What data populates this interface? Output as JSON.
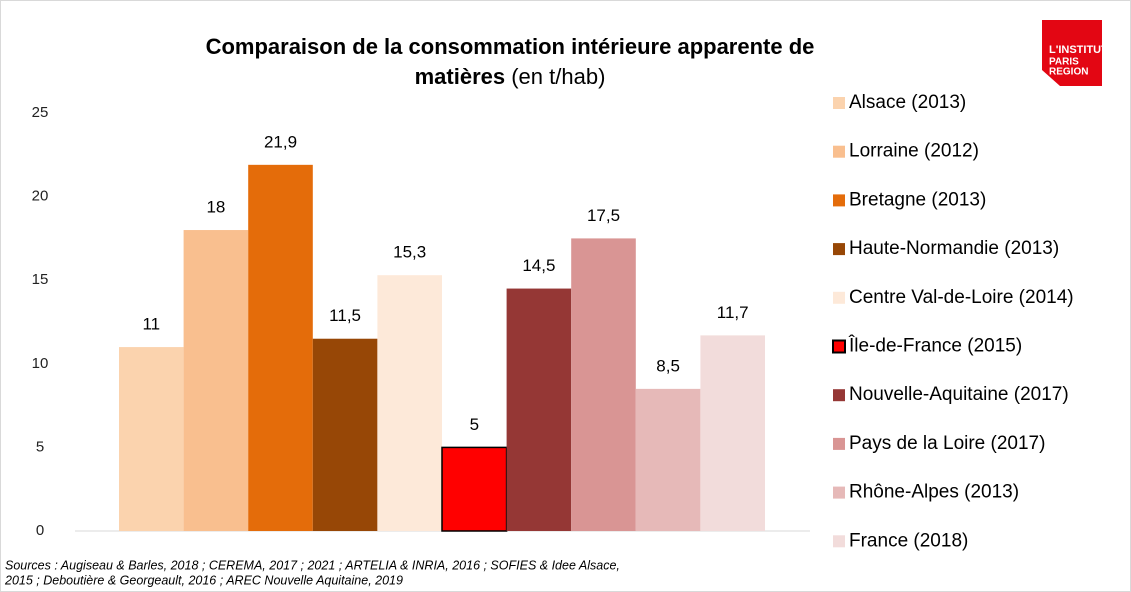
{
  "chart_data": {
    "type": "bar",
    "title": [
      "Comparaison de la consommation intérieure apparente de",
      "matières"
    ],
    "title_unit": "(en t/hab)",
    "categories": [
      "Alsace (2013)",
      "Lorraine (2012)",
      "Bretagne (2013)",
      "Haute-Normandie (2013)",
      "Centre Val-de-Loire (2014)",
      "Île-de-France (2015)",
      "Nouvelle-Aquitaine (2017)",
      "Pays de la Loire (2017)",
      "Rhône-Alpes (2013)",
      "France (2018)"
    ],
    "values": [
      11,
      18,
      21.9,
      11.5,
      15.3,
      5,
      14.5,
      17.5,
      8.5,
      11.7
    ],
    "value_labels": [
      "11",
      "18",
      "21,9",
      "11,5",
      "15,3",
      "5",
      "14,5",
      "17,5",
      "8,5",
      "11,7"
    ],
    "colors": [
      "#fbd3ae",
      "#f9bf8f",
      "#e46c0a",
      "#974706",
      "#fde9d9",
      "#ff0000",
      "#953735",
      "#d99594",
      "#e6b9b8",
      "#f2dcdb"
    ],
    "edgecolors": [
      "none",
      "none",
      "none",
      "none",
      "none",
      "#000000",
      "none",
      "none",
      "none",
      "none"
    ],
    "ylim": [
      0,
      25
    ],
    "yticks": [
      0,
      5,
      10,
      15,
      20,
      25
    ],
    "grid": false,
    "legend": "right",
    "source": [
      "Sources : Augiseau & Barles, 2018 ; CEREMA, 2017 ; 2021 ; ARTELIA & INRIA, 2016 ; SOFIES & Idee Alsace,",
      "2015  ; Deboutière & Georgeault, 2016 ; AREC Nouvelle Aquitaine, 2019"
    ]
  },
  "logo": [
    "L'INSTITUT",
    "PARIS",
    "REGION"
  ]
}
